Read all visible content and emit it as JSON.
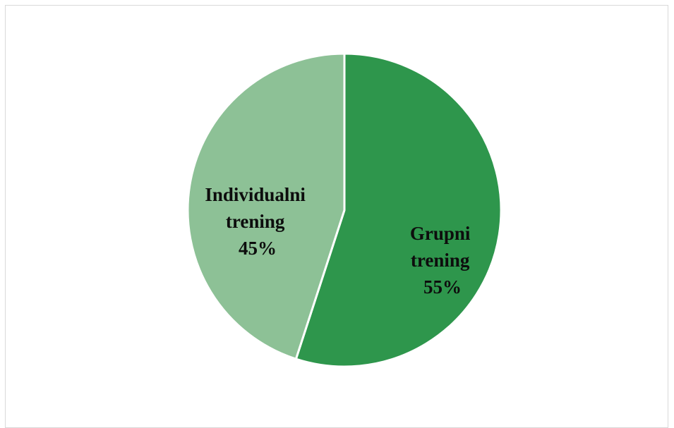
{
  "chart_data": {
    "type": "pie",
    "slices": [
      {
        "label_line1": "Grupni",
        "label_line2": "trening",
        "value": 55,
        "value_label": "55%",
        "color": "#2e964c"
      },
      {
        "label_line1": "Individualni",
        "label_line2": "trening",
        "value": 45,
        "value_label": "45%",
        "color": "#8dc196"
      }
    ],
    "start_angle_deg": 0,
    "direction": "clockwise",
    "separator_color": "#ffffff",
    "legend": "none"
  }
}
